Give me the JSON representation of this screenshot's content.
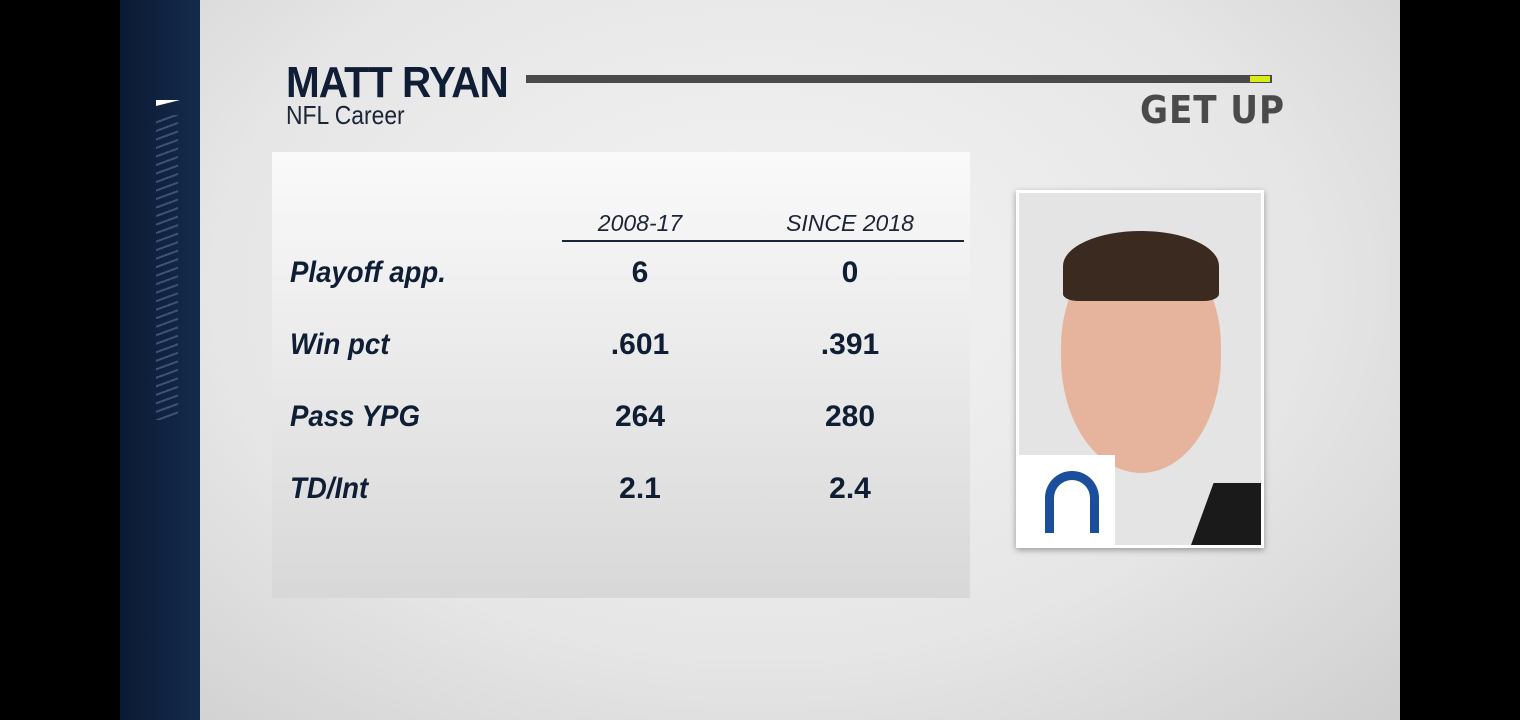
{
  "header": {
    "title": "MATT RYAN",
    "subtitle": "NFL Career",
    "brand": "GET UP",
    "accent_color": "#d8ec1a",
    "brand_color": "#4a4a4a"
  },
  "table": {
    "columns": [
      "2008-17",
      "SINCE 2018"
    ],
    "rows": [
      {
        "label": "Playoff app.",
        "values": [
          "6",
          "0"
        ]
      },
      {
        "label": "Win pct",
        "values": [
          ".601",
          ".391"
        ]
      },
      {
        "label": "Pass YPG",
        "values": [
          "264",
          "280"
        ]
      },
      {
        "label": "TD/Int",
        "values": [
          "2.1",
          "2.4"
        ]
      }
    ]
  },
  "photo": {
    "team_logo": "horseshoe-icon",
    "team_color": "#1b4f9c"
  }
}
